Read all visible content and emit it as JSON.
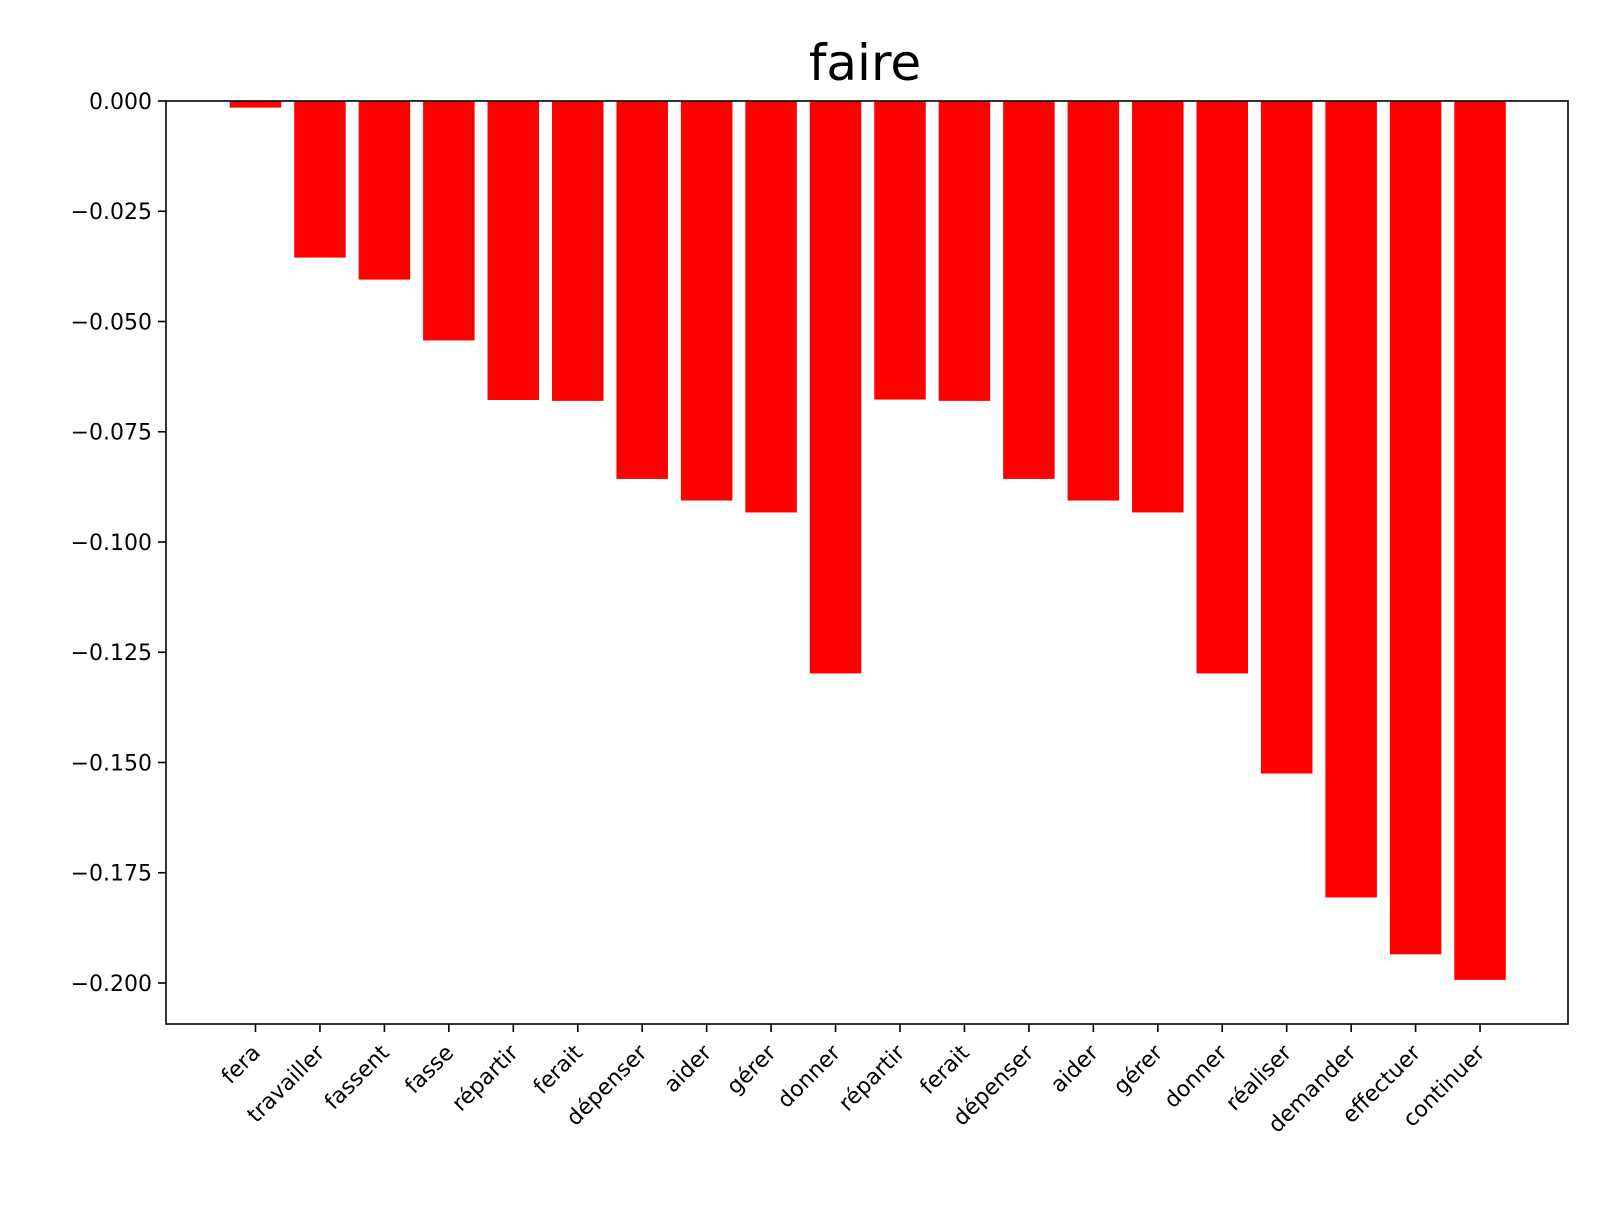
{
  "chart_data": {
    "type": "bar",
    "title": "faire",
    "xlabel": "",
    "ylabel": "",
    "categories": [
      "fera",
      "travailler",
      "fassent",
      "fasse",
      "répartir",
      "ferait",
      "dépenser",
      "aider",
      "gérer",
      "donner",
      "répartir",
      "ferait",
      "dépenser",
      "aider",
      "gérer",
      "donner",
      "réaliser",
      "demander",
      "effectuer",
      "continuer"
    ],
    "values": [
      -0.0015,
      -0.0355,
      -0.0405,
      -0.0543,
      -0.0678,
      -0.068,
      -0.0857,
      -0.0906,
      -0.0933,
      -0.1298,
      -0.0677,
      -0.068,
      -0.0857,
      -0.0906,
      -0.0933,
      -0.1298,
      -0.1525,
      -0.1806,
      -0.1935,
      -0.1993
    ],
    "ylim": [
      -0.2093,
      0.0
    ],
    "yticks": [
      0.0,
      -0.025,
      -0.05,
      -0.075,
      -0.1,
      -0.125,
      -0.15,
      -0.175,
      -0.2
    ],
    "ytick_labels": [
      "0.000",
      "−0.025",
      "−0.050",
      "−0.075",
      "−0.100",
      "−0.125",
      "−0.150",
      "−0.175",
      "−0.200"
    ],
    "bar_color": "#ff0000",
    "grid": false,
    "legend": "none"
  }
}
